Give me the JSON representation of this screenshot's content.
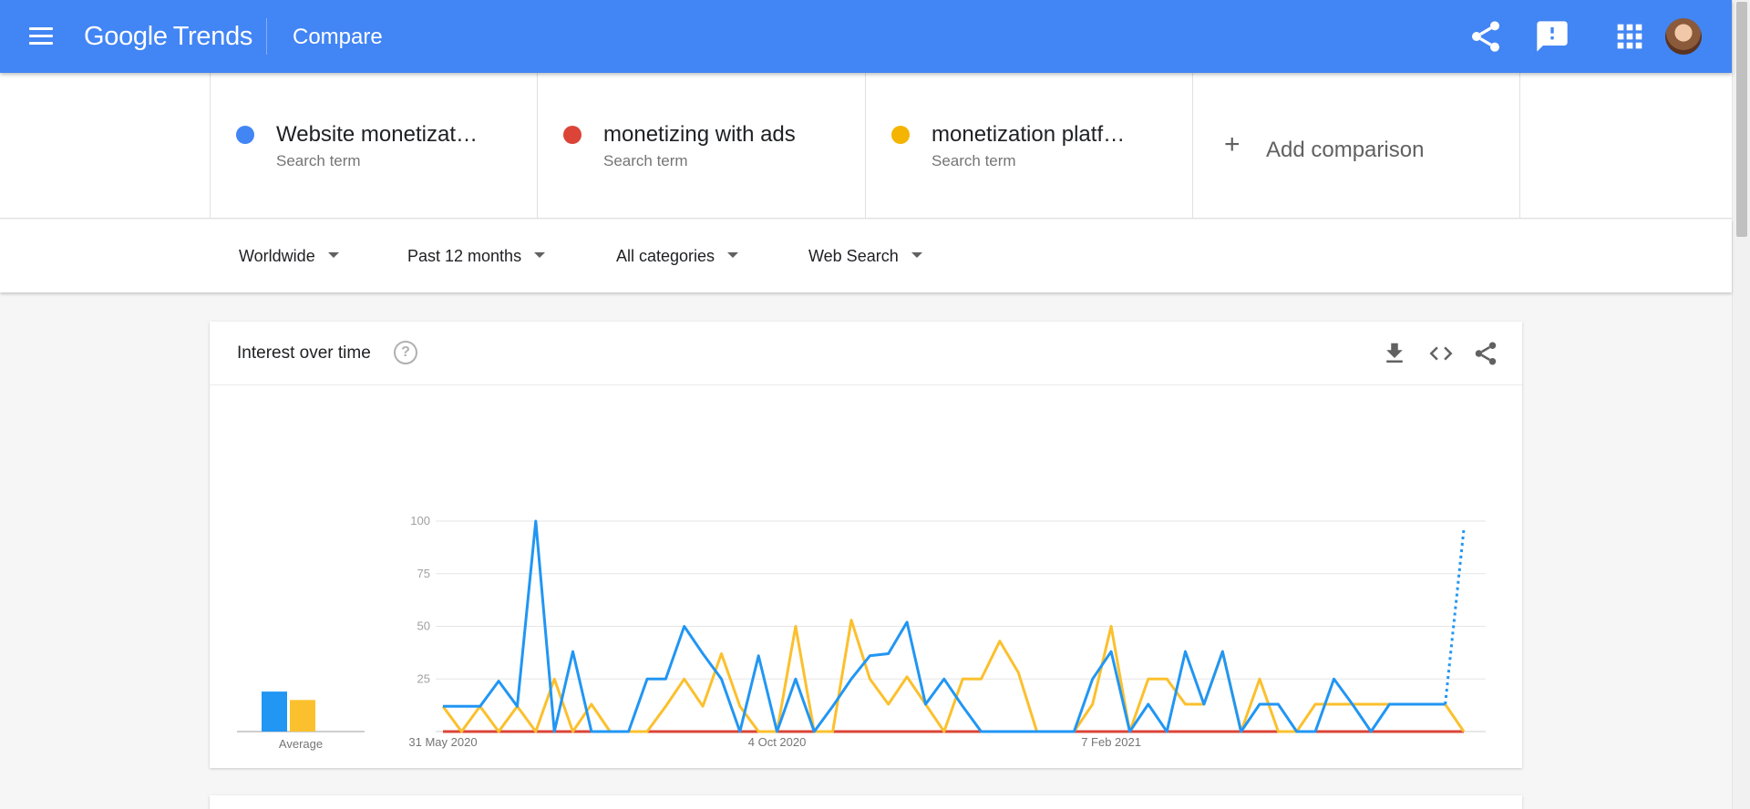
{
  "header": {
    "logo_google": "Google",
    "logo_trends": "Trends",
    "title": "Compare",
    "icons": [
      "menu-icon",
      "share-icon",
      "feedback-icon",
      "apps-icon",
      "avatar"
    ]
  },
  "terms": [
    {
      "name": "Website monetizat…",
      "type": "Search term",
      "color": "#4285f4"
    },
    {
      "name": "monetizing with ads",
      "type": "Search term",
      "color": "#db4437"
    },
    {
      "name": "monetization platf…",
      "type": "Search term",
      "color": "#f4b400"
    }
  ],
  "add_comparison": "Add comparison",
  "filters": {
    "region": "Worldwide",
    "time": "Past 12 months",
    "category": "All categories",
    "search_type": "Web Search"
  },
  "card": {
    "title": "Interest over time",
    "help_icon": "?",
    "average_label": "Average"
  },
  "chart_data": {
    "type": "line",
    "title": "",
    "xlabel": "",
    "ylabel": "",
    "ylim": [
      0,
      100
    ],
    "yticks": [
      100,
      75,
      50,
      25
    ],
    "xtick_labels": [
      {
        "index": 0,
        "label": "31 May 2020"
      },
      {
        "index": 18,
        "label": "4 Oct 2020"
      },
      {
        "index": 36,
        "label": "7 Feb 2021"
      }
    ],
    "grid": true,
    "series": [
      {
        "color": "#2196f3",
        "average": 19,
        "partial_last": true,
        "values": [
          12,
          12,
          12,
          24,
          12,
          100,
          0,
          38,
          0,
          0,
          0,
          25,
          25,
          50,
          37,
          25,
          0,
          36,
          0,
          25,
          0,
          12,
          25,
          36,
          37,
          52,
          13,
          25,
          12,
          0,
          0,
          0,
          0,
          0,
          0,
          25,
          38,
          0,
          13,
          0,
          38,
          13,
          38,
          0,
          13,
          13,
          0,
          0,
          25,
          13,
          0,
          13,
          13,
          13,
          13,
          96
        ]
      },
      {
        "color": "#db4437",
        "average": 0,
        "partial_last": false,
        "values": [
          0,
          0,
          0,
          0,
          0,
          0,
          0,
          0,
          0,
          0,
          0,
          0,
          0,
          0,
          0,
          0,
          0,
          0,
          0,
          0,
          0,
          0,
          0,
          0,
          0,
          0,
          0,
          0,
          0,
          0,
          0,
          0,
          0,
          0,
          0,
          0,
          0,
          0,
          0,
          0,
          0,
          0,
          0,
          0,
          0,
          0,
          0,
          0,
          0,
          0,
          0,
          0,
          0,
          0,
          0,
          0
        ]
      },
      {
        "color": "#fbc02d",
        "average": 15,
        "partial_last": false,
        "values": [
          12,
          0,
          12,
          0,
          12,
          0,
          25,
          0,
          13,
          0,
          0,
          0,
          12,
          25,
          12,
          37,
          12,
          0,
          0,
          50,
          0,
          0,
          53,
          25,
          13,
          26,
          13,
          0,
          25,
          25,
          43,
          28,
          0,
          0,
          0,
          13,
          50,
          0,
          25,
          25,
          13,
          13,
          38,
          0,
          25,
          0,
          0,
          13,
          13,
          13,
          13,
          13,
          13,
          13,
          13,
          0
        ]
      }
    ]
  }
}
